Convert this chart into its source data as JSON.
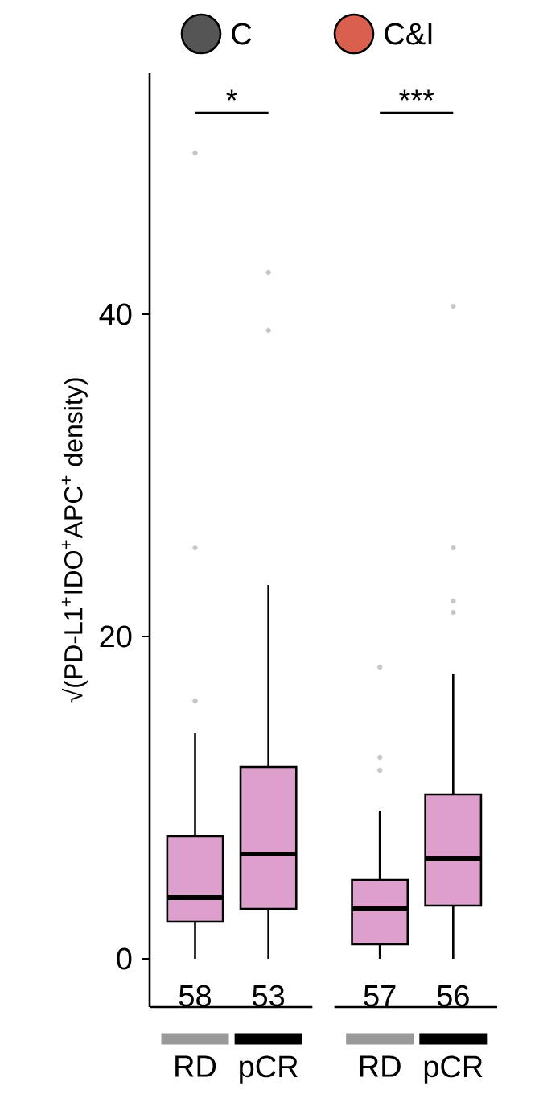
{
  "chart_data": {
    "type": "box",
    "ylabel": "√(PD-L1$^{+}$IDO$^{+}$APC$^{+}$ density)",
    "categories": [
      "RD",
      "pCR",
      "RD",
      "pCR"
    ],
    "color": "#dda0cc",
    "ylim": [
      -3,
      55
    ],
    "yticks": [
      0,
      20,
      40
    ],
    "series": [
      {
        "value_labels": [
          "58",
          "53",
          null,
          null
        ],
        "boxes": [
          {
            "low": 0,
            "q1": 2.3,
            "median": 3.8,
            "q3": 7.6,
            "high": 14.0,
            "outliers": [
              16,
              25.5,
              50
            ]
          },
          {
            "low": 0,
            "q1": 3.1,
            "median": 6.5,
            "q3": 11.9,
            "high": 23.2,
            "outliers": [
              39,
              42.6
            ]
          },
          null,
          null
        ]
      },
      {
        "value_labels": [
          null,
          null,
          "57",
          "56"
        ],
        "boxes": [
          null,
          null,
          {
            "low": 0,
            "q1": 0.9,
            "median": 3.1,
            "q3": 4.9,
            "high": 9.2,
            "outliers": [
              11.7,
              12.5,
              18.1
            ]
          },
          {
            "low": 0,
            "q1": 3.3,
            "median": 6.2,
            "q3": 10.2,
            "high": 17.7,
            "outliers": [
              21.5,
              22.2,
              25.5,
              40.5
            ]
          }
        ]
      }
    ],
    "annotations": [
      "C",
      "C&I",
      "*",
      "***"
    ]
  }
}
